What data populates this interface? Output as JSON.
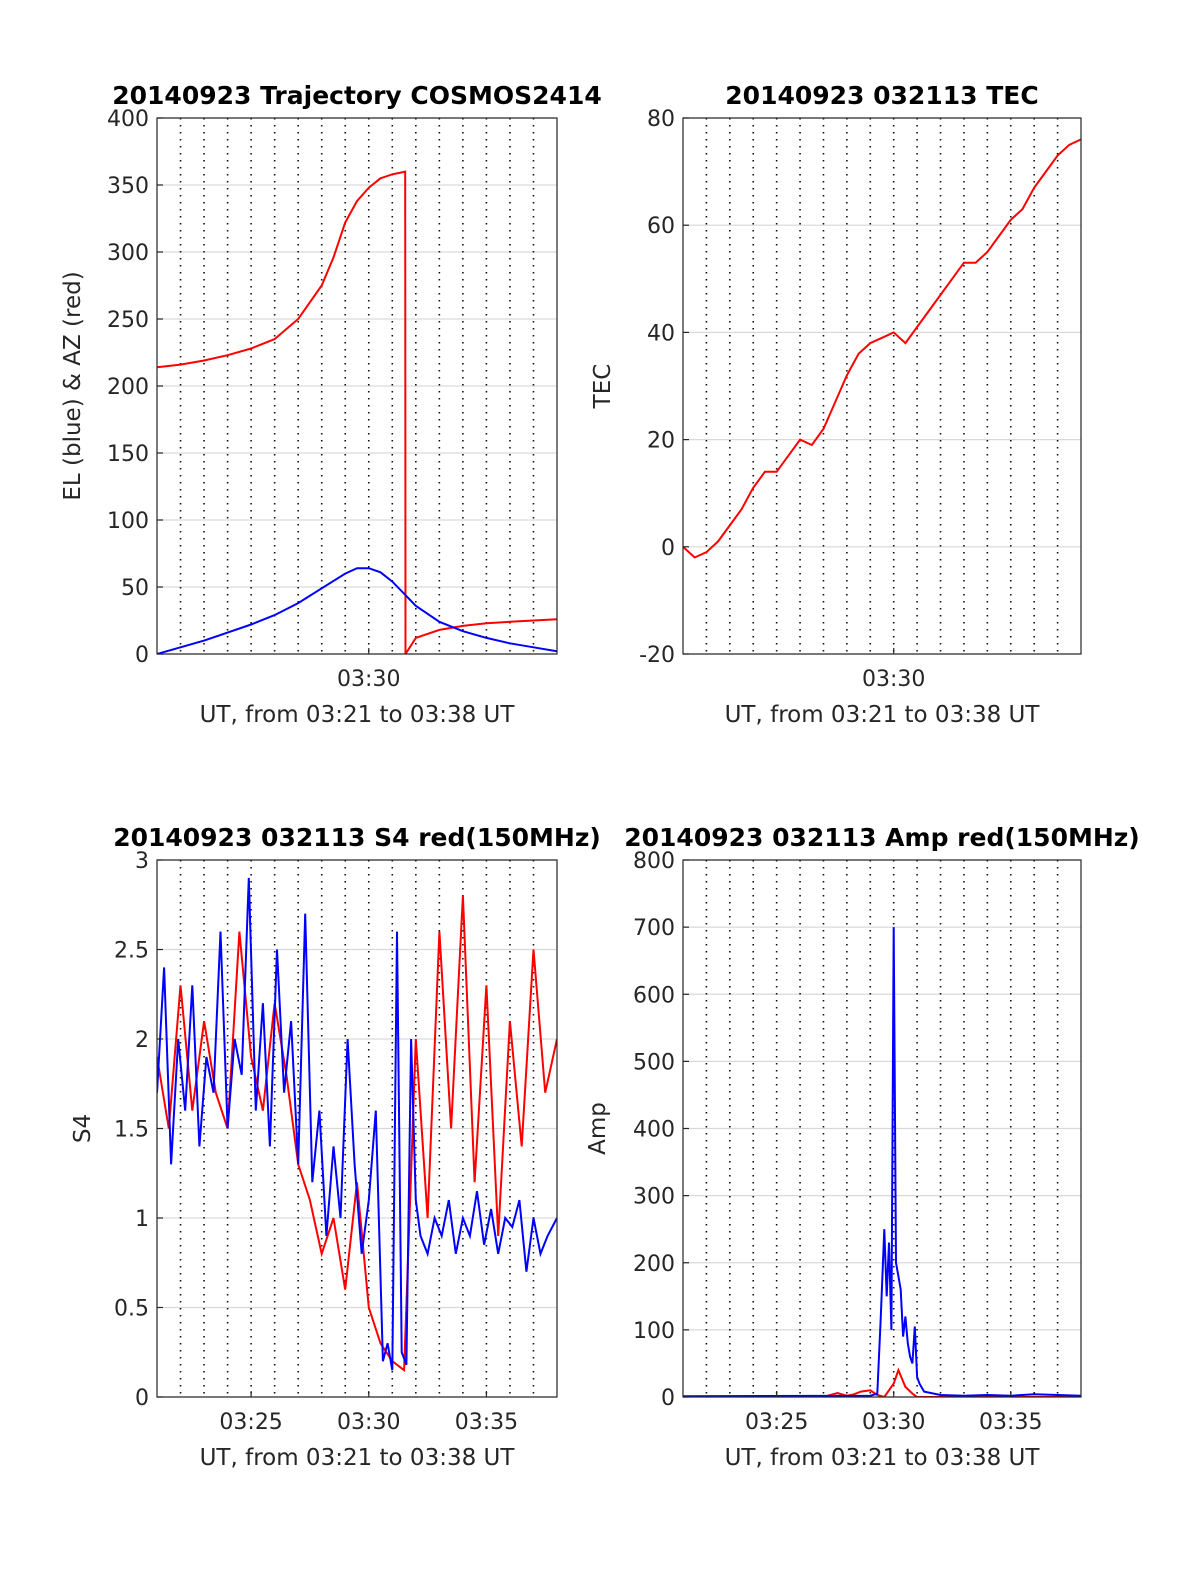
{
  "chart_data": [
    {
      "type": "line",
      "title": "20140923 Trajectory COSMOS2414",
      "xlabel": "UT, from 03:21 to 03:38 UT",
      "ylabel": "EL (blue) & AZ (red)",
      "xlim_minutes_after_0321": [
        0,
        17
      ],
      "ylim": [
        0,
        400
      ],
      "yticks": [
        "0",
        "50",
        "100",
        "150",
        "200",
        "250",
        "300",
        "350",
        "400"
      ],
      "xticks": [
        "03:30"
      ],
      "grid": true,
      "series": [
        {
          "color": "#ff0000",
          "x": [
            0,
            1,
            2,
            3,
            4,
            5,
            6,
            7,
            7.5,
            8,
            8.5,
            9,
            9.5,
            10,
            10.3,
            10.55,
            10.56,
            11,
            12,
            13,
            14,
            15,
            16,
            17
          ],
          "y": [
            214,
            216,
            219,
            223,
            228,
            235,
            250,
            275,
            296,
            322,
            338,
            348,
            355,
            358,
            359,
            360,
            0,
            12,
            18,
            21,
            23,
            24,
            25,
            26
          ]
        },
        {
          "color": "#0000ff",
          "x": [
            0,
            1,
            2,
            3,
            4,
            5,
            6,
            7,
            8,
            8.5,
            9,
            9.5,
            10,
            10.5,
            11,
            12,
            13,
            14,
            15,
            16,
            17
          ],
          "y": [
            0,
            5,
            10,
            16,
            22,
            29,
            38,
            49,
            60,
            64,
            64,
            61,
            54,
            45,
            36,
            24,
            17,
            12,
            8,
            5,
            2
          ]
        }
      ]
    },
    {
      "type": "line",
      "title": "20140923 032113 TEC",
      "xlabel": "UT, from 03:21 to 03:38 UT",
      "ylabel": "TEC",
      "xlim_minutes_after_0321": [
        0,
        17
      ],
      "ylim": [
        -20,
        80
      ],
      "yticks": [
        "-20",
        "0",
        "20",
        "40",
        "60",
        "80"
      ],
      "xticks": [
        "03:30"
      ],
      "grid": true,
      "series": [
        {
          "color": "#ff0000",
          "x": [
            0,
            0.5,
            1,
            1.5,
            2,
            2.5,
            3,
            3.5,
            4,
            4.5,
            5,
            5.5,
            6,
            6.5,
            7,
            7.5,
            8,
            8.5,
            9,
            9.5,
            10,
            10.5,
            11,
            11.5,
            12,
            12.5,
            13,
            13.5,
            14,
            14.5,
            15,
            15.5,
            16,
            16.5,
            17
          ],
          "y": [
            0,
            -2,
            -1,
            1,
            4,
            7,
            11,
            14,
            14,
            17,
            20,
            19,
            22,
            27,
            32,
            36,
            38,
            39,
            40,
            38,
            41,
            44,
            47,
            50,
            53,
            53,
            55,
            58,
            61,
            63,
            67,
            70,
            73,
            75,
            76
          ]
        }
      ]
    },
    {
      "type": "line",
      "title": "20140923 032113 S4 red(150MHz)",
      "xlabel": "UT, from 03:21 to 03:38 UT",
      "ylabel": "S4",
      "xlim_minutes_after_0321": [
        0,
        17
      ],
      "ylim": [
        0,
        3
      ],
      "yticks": [
        "0",
        "0.5",
        "1",
        "1.5",
        "2",
        "2.5",
        "3"
      ],
      "xticks": [
        "03:25",
        "03:30",
        "03:35"
      ],
      "grid": true,
      "series": [
        {
          "color": "#ff0000",
          "x": [
            0,
            0.5,
            1,
            1.5,
            2,
            2.5,
            3,
            3.5,
            4,
            4.5,
            5,
            5.5,
            6,
            6.5,
            7,
            7.5,
            8,
            8.5,
            9,
            9.5,
            10,
            10.5,
            11,
            11.5,
            12,
            12.5,
            13,
            13.5,
            14,
            14.5,
            15,
            15.5,
            16,
            16.5,
            17
          ],
          "y": [
            1.9,
            1.5,
            2.3,
            1.6,
            2.1,
            1.7,
            1.5,
            2.6,
            1.9,
            1.6,
            2.2,
            1.8,
            1.3,
            1.1,
            0.8,
            1.0,
            0.6,
            1.2,
            0.5,
            0.3,
            0.2,
            0.15,
            2.0,
            1.0,
            2.6,
            1.5,
            2.8,
            1.2,
            2.3,
            0.9,
            2.1,
            1.4,
            2.5,
            1.7,
            2.0
          ]
        },
        {
          "color": "#0000ff",
          "x": [
            0,
            0.3,
            0.6,
            0.9,
            1.2,
            1.5,
            1.8,
            2.1,
            2.4,
            2.7,
            3,
            3.3,
            3.6,
            3.9,
            4.2,
            4.5,
            4.8,
            5.1,
            5.4,
            5.7,
            6,
            6.3,
            6.6,
            6.9,
            7.2,
            7.5,
            7.8,
            8.1,
            8.4,
            8.7,
            9,
            9.3,
            9.6,
            9.8,
            10,
            10.2,
            10.4,
            10.6,
            10.8,
            11,
            11.2,
            11.5,
            11.8,
            12.1,
            12.4,
            12.7,
            13,
            13.3,
            13.6,
            13.9,
            14.2,
            14.5,
            14.8,
            15.1,
            15.4,
            15.7,
            16,
            16.3,
            16.6,
            17
          ],
          "y": [
            1.7,
            2.4,
            1.3,
            2.0,
            1.6,
            2.3,
            1.4,
            1.9,
            1.7,
            2.6,
            1.5,
            2.0,
            1.8,
            2.9,
            1.6,
            2.2,
            1.4,
            2.5,
            1.7,
            2.1,
            1.3,
            2.7,
            1.2,
            1.6,
            0.9,
            1.4,
            1.0,
            2.0,
            1.3,
            0.8,
            1.1,
            1.6,
            0.2,
            0.3,
            0.15,
            2.6,
            0.25,
            0.18,
            2.0,
            1.1,
            0.9,
            0.8,
            1.0,
            0.9,
            1.1,
            0.8,
            1.0,
            0.9,
            1.15,
            0.85,
            1.05,
            0.8,
            1.0,
            0.95,
            1.1,
            0.7,
            1.0,
            0.8,
            0.9,
            1.0
          ]
        }
      ]
    },
    {
      "type": "line",
      "title": "20140923 032113 Amp red(150MHz)",
      "xlabel": "UT, from 03:21 to 03:38 UT",
      "ylabel": "Amp",
      "xlim_minutes_after_0321": [
        0,
        17
      ],
      "ylim": [
        0,
        800
      ],
      "yticks": [
        "0",
        "100",
        "200",
        "300",
        "400",
        "500",
        "600",
        "700",
        "800"
      ],
      "xticks": [
        "03:25",
        "03:30",
        "03:35"
      ],
      "grid": true,
      "series": [
        {
          "color": "#ff0000",
          "x": [
            0,
            6,
            6.3,
            6.6,
            7,
            7.3,
            7.6,
            8,
            8.3,
            8.6,
            9,
            9.2,
            9.5,
            9.8,
            10,
            17
          ],
          "y": [
            0,
            0,
            3,
            6,
            2,
            4,
            8,
            10,
            3,
            0,
            20,
            40,
            15,
            5,
            0,
            0
          ]
        },
        {
          "color": "#0000ff",
          "x": [
            0,
            8,
            8.3,
            8.45,
            8.6,
            8.7,
            8.8,
            8.9,
            9.0,
            9.1,
            9.2,
            9.3,
            9.4,
            9.5,
            9.6,
            9.7,
            9.8,
            9.9,
            10.0,
            10.1,
            10.3,
            11,
            12,
            13,
            14,
            15,
            16,
            17
          ],
          "y": [
            1,
            2,
            5,
            120,
            250,
            150,
            230,
            100,
            700,
            200,
            180,
            160,
            90,
            120,
            80,
            60,
            50,
            105,
            30,
            20,
            8,
            3,
            2,
            3,
            2,
            4,
            3,
            2
          ]
        }
      ]
    }
  ]
}
